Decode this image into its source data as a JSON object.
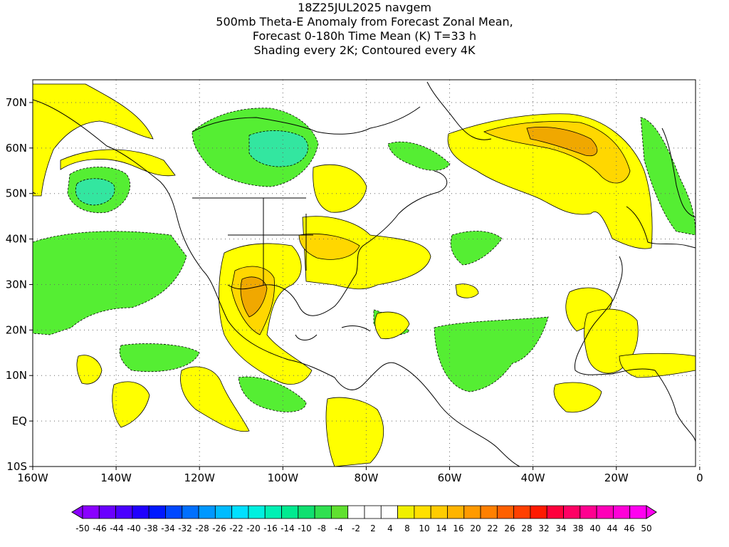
{
  "title_lines": [
    "18Z25JUL2025 navgem",
    "500mb Theta-E Anomaly from Forecast Zonal Mean,",
    "Forecast 0-180h Time Mean (K) T=33 h",
    "Shading every 2K; Contoured every 4K"
  ],
  "map": {
    "lon_labels": [
      "160W",
      "140W",
      "120W",
      "100W",
      "80W",
      "60W",
      "40W",
      "20W",
      "0"
    ],
    "lat_labels": [
      "70N",
      "60N",
      "50N",
      "40N",
      "30N",
      "20N",
      "10N",
      "EQ",
      "10S"
    ],
    "lon_range": [
      -160,
      -1
    ],
    "lat_range": [
      -10,
      75
    ],
    "grid_lons": [
      -140,
      -120,
      -100,
      -80,
      -60,
      -40,
      -20,
      0
    ],
    "grid_lats": [
      70,
      60,
      50,
      40,
      30,
      20,
      10,
      0
    ]
  },
  "colorbar": {
    "labels": [
      "-50",
      "-46",
      "-44",
      "-40",
      "-38",
      "-34",
      "-32",
      "-28",
      "-26",
      "-22",
      "-20",
      "-16",
      "-14",
      "-10",
      "-8",
      "-4",
      "-2",
      "2",
      "4",
      "8",
      "10",
      "14",
      "16",
      "20",
      "22",
      "26",
      "28",
      "32",
      "34",
      "38",
      "40",
      "44",
      "46",
      "50"
    ],
    "colors": [
      "#8a00ff",
      "#6a00ff",
      "#4a00ff",
      "#2000ff",
      "#0018ff",
      "#0048ff",
      "#0070ff",
      "#0098ff",
      "#00bcff",
      "#00e0ff",
      "#00f0e0",
      "#00f0b4",
      "#00ea90",
      "#10e070",
      "#30e050",
      "#60e030",
      "#ffffff",
      "#ffffff",
      "#ffffff",
      "#f0f000",
      "#ffe000",
      "#ffcc00",
      "#ffb400",
      "#ff9a00",
      "#ff8000",
      "#ff6000",
      "#ff4000",
      "#ff1a00",
      "#ff003c",
      "#ff0064",
      "#ff0090",
      "#ff00b8",
      "#ff00d8",
      "#ff00f0"
    ]
  },
  "fields": {
    "colors": {
      "yellow": "#ffff00",
      "gold": "#ffd700",
      "orange": "#f0a800",
      "green": "#55ee33",
      "teal": "#33e6a0"
    }
  }
}
